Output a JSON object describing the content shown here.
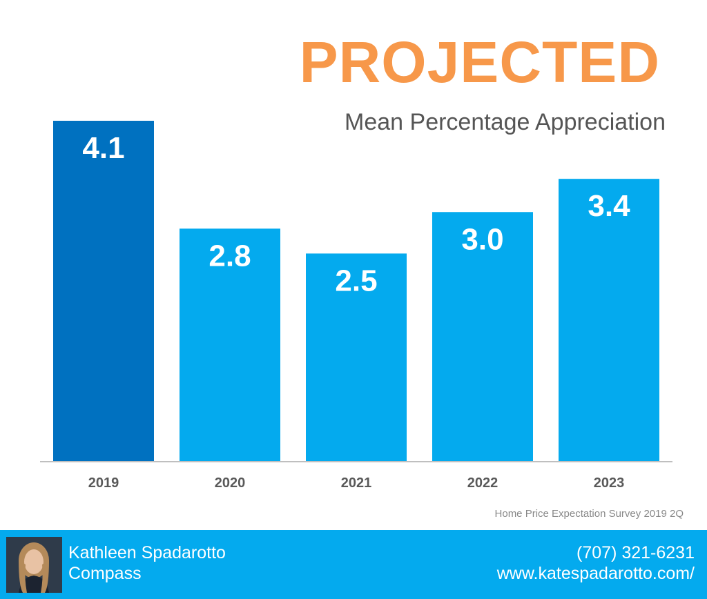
{
  "chart_data": {
    "type": "bar",
    "title": "PROJECTED",
    "subtitle": "Mean Percentage Appreciation",
    "categories": [
      "2019",
      "2020",
      "2021",
      "2022",
      "2023"
    ],
    "values": [
      4.1,
      2.8,
      2.5,
      3.0,
      3.4
    ],
    "value_labels": [
      "4.1",
      "2.8",
      "2.5",
      "3.0",
      "3.4"
    ],
    "highlighted_index": 0,
    "xlabel": "",
    "ylabel": "",
    "ylim": [
      0,
      4.1
    ],
    "grid": false,
    "colors": {
      "highlight": "#0071c0",
      "bar": "#04aaee",
      "axis": "#bfbfbf",
      "tick_label": "#595959",
      "title": "#f7984a"
    }
  },
  "source": "Home Price Expectation Survey 2019 2Q",
  "footer": {
    "name": "Kathleen Spadarotto",
    "company": "Compass",
    "phone": "(707) 321-6231",
    "website": "www.katespadarotto.com/",
    "background": "#04aaee"
  }
}
